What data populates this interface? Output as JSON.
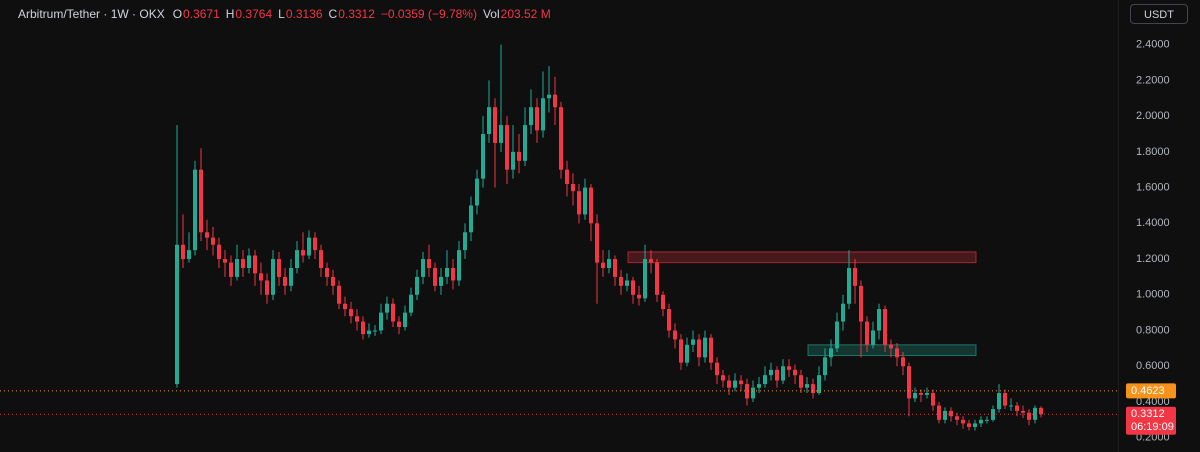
{
  "header": {
    "symbol": "Arbitrum/Tether · 1W · OKX",
    "o_label": "O",
    "o": "0.3671",
    "h_label": "H",
    "h": "0.3764",
    "l_label": "L",
    "l": "0.3136",
    "c_label": "C",
    "c": "0.3312",
    "change": "−0.0359 (−9.78%)",
    "vol_label": "Vol",
    "vol": "203.52 M"
  },
  "currency_button": "USDT",
  "chart_data": {
    "type": "candlestick",
    "up_color": "#22ab94",
    "down_color": "#f23645",
    "grid": false,
    "ylim": [
      0.12,
      2.65
    ],
    "yticks": [
      {
        "value": 0.2,
        "label": "0.2000"
      },
      {
        "value": 0.4,
        "label": "0.4000"
      },
      {
        "value": 0.6,
        "label": "0.6000"
      },
      {
        "value": 0.8,
        "label": "0.8000"
      },
      {
        "value": 1.0,
        "label": "1.0000"
      },
      {
        "value": 1.2,
        "label": "1.2000"
      },
      {
        "value": 1.4,
        "label": "1.4000"
      },
      {
        "value": 1.6,
        "label": "1.6000"
      },
      {
        "value": 1.8,
        "label": "1.8000"
      },
      {
        "value": 2.0,
        "label": "2.0000"
      },
      {
        "value": 2.2,
        "label": "2.2000"
      },
      {
        "value": 2.4,
        "label": "2.4000"
      }
    ],
    "open": [
      0.5,
      1.28,
      1.2,
      1.25,
      1.7,
      1.35,
      1.32,
      1.28,
      1.2,
      1.18,
      1.1,
      1.2,
      1.15,
      1.22,
      1.12,
      1.08,
      1.0,
      1.2,
      1.1,
      1.05,
      1.15,
      1.25,
      1.22,
      1.32,
      1.25,
      1.15,
      1.1,
      1.05,
      0.95,
      0.92,
      0.88,
      0.85,
      0.78,
      0.8,
      0.8,
      0.9,
      0.95,
      0.85,
      0.82,
      0.9,
      1.0,
      1.1,
      1.2,
      1.15,
      1.05,
      1.1,
      1.15,
      1.08,
      1.25,
      1.35,
      1.5,
      1.65,
      1.9,
      2.05,
      1.85,
      1.95,
      1.7,
      1.8,
      1.75,
      1.95,
      2.05,
      1.92,
      2.1,
      2.12,
      2.05,
      1.7,
      1.62,
      1.58,
      1.45,
      1.6,
      1.4,
      1.18,
      1.15,
      1.2,
      1.1,
      1.05,
      1.08,
      1.0,
      0.98,
      1.2,
      1.18,
      1.0,
      0.92,
      0.8,
      0.75,
      0.62,
      0.72,
      0.75,
      0.65,
      0.76,
      0.62,
      0.55,
      0.52,
      0.48,
      0.52,
      0.5,
      0.42,
      0.48,
      0.5,
      0.55,
      0.58,
      0.52,
      0.6,
      0.58,
      0.55,
      0.48,
      0.5,
      0.45,
      0.55,
      0.65,
      0.7,
      0.85,
      0.95,
      1.15,
      1.05,
      0.85,
      0.72,
      0.8,
      0.92,
      0.72,
      0.7,
      0.65,
      0.6,
      0.42,
      0.45,
      0.44,
      0.45,
      0.38,
      0.3,
      0.35,
      0.32,
      0.3,
      0.28,
      0.26,
      0.28,
      0.3,
      0.3,
      0.36,
      0.45,
      0.38,
      0.38,
      0.35,
      0.34,
      0.3,
      0.3671
    ],
    "high": [
      1.95,
      1.45,
      1.35,
      1.75,
      1.82,
      1.42,
      1.38,
      1.32,
      1.25,
      1.22,
      1.28,
      1.25,
      1.26,
      1.25,
      1.18,
      1.12,
      1.25,
      1.24,
      1.15,
      1.2,
      1.3,
      1.35,
      1.36,
      1.35,
      1.28,
      1.18,
      1.14,
      1.08,
      0.99,
      0.96,
      0.92,
      0.88,
      0.84,
      0.83,
      0.95,
      0.99,
      0.98,
      0.88,
      0.94,
      1.04,
      1.14,
      1.24,
      1.28,
      1.18,
      1.15,
      1.25,
      1.2,
      1.3,
      1.4,
      1.55,
      1.7,
      2.0,
      2.2,
      2.1,
      2.4,
      2.0,
      1.95,
      1.9,
      2.05,
      2.15,
      2.1,
      2.25,
      2.28,
      2.22,
      2.08,
      1.75,
      1.68,
      1.62,
      1.65,
      1.62,
      1.45,
      1.25,
      1.25,
      1.22,
      1.14,
      1.12,
      1.1,
      1.05,
      1.28,
      1.25,
      1.2,
      1.02,
      0.95,
      0.84,
      0.78,
      0.76,
      0.8,
      0.78,
      0.8,
      0.78,
      0.65,
      0.58,
      0.55,
      0.56,
      0.55,
      0.53,
      0.52,
      0.54,
      0.6,
      0.62,
      0.6,
      0.64,
      0.64,
      0.61,
      0.58,
      0.54,
      0.53,
      0.6,
      0.7,
      0.75,
      0.9,
      1.0,
      1.25,
      1.2,
      1.08,
      0.88,
      0.85,
      0.95,
      0.94,
      0.75,
      0.73,
      0.68,
      0.62,
      0.48,
      0.47,
      0.48,
      0.47,
      0.4,
      0.37,
      0.37,
      0.34,
      0.32,
      0.3,
      0.3,
      0.32,
      0.32,
      0.38,
      0.5,
      0.47,
      0.42,
      0.4,
      0.38,
      0.36,
      0.38,
      0.3764
    ],
    "low": [
      0.48,
      1.15,
      1.18,
      1.22,
      1.3,
      1.25,
      1.22,
      1.15,
      1.1,
      1.05,
      1.08,
      1.1,
      1.12,
      1.05,
      1.0,
      0.95,
      0.97,
      1.05,
      1.0,
      1.02,
      1.12,
      1.18,
      1.2,
      1.2,
      1.1,
      1.05,
      1.0,
      0.92,
      0.88,
      0.84,
      0.8,
      0.75,
      0.76,
      0.77,
      0.78,
      0.86,
      0.82,
      0.78,
      0.8,
      0.88,
      0.97,
      1.06,
      1.1,
      1.02,
      1.0,
      1.06,
      1.03,
      1.05,
      1.2,
      1.3,
      1.45,
      1.6,
      1.85,
      1.6,
      1.8,
      1.62,
      1.65,
      1.68,
      1.72,
      1.9,
      1.85,
      1.88,
      2.02,
      1.95,
      1.65,
      1.55,
      1.5,
      1.4,
      1.42,
      1.3,
      0.95,
      1.1,
      1.12,
      1.05,
      1.0,
      1.02,
      0.95,
      0.94,
      0.96,
      1.12,
      0.96,
      0.88,
      0.76,
      0.7,
      0.58,
      0.6,
      0.68,
      0.6,
      0.62,
      0.58,
      0.5,
      0.48,
      0.44,
      0.46,
      0.46,
      0.38,
      0.4,
      0.45,
      0.48,
      0.52,
      0.48,
      0.5,
      0.54,
      0.5,
      0.45,
      0.45,
      0.42,
      0.44,
      0.52,
      0.6,
      0.68,
      0.8,
      0.92,
      0.95,
      0.65,
      0.68,
      0.7,
      0.75,
      0.68,
      0.65,
      0.6,
      0.55,
      0.32,
      0.4,
      0.4,
      0.42,
      0.35,
      0.28,
      0.28,
      0.29,
      0.27,
      0.25,
      0.24,
      0.24,
      0.26,
      0.28,
      0.29,
      0.34,
      0.36,
      0.35,
      0.32,
      0.31,
      0.27,
      0.28,
      0.3136
    ],
    "close": [
      1.28,
      1.2,
      1.25,
      1.7,
      1.35,
      1.32,
      1.28,
      1.2,
      1.18,
      1.1,
      1.2,
      1.15,
      1.22,
      1.12,
      1.08,
      1.0,
      1.2,
      1.1,
      1.05,
      1.15,
      1.25,
      1.22,
      1.32,
      1.25,
      1.15,
      1.1,
      1.05,
      0.95,
      0.92,
      0.88,
      0.85,
      0.78,
      0.8,
      0.8,
      0.9,
      0.95,
      0.85,
      0.82,
      0.9,
      1.0,
      1.1,
      1.2,
      1.15,
      1.05,
      1.1,
      1.15,
      1.08,
      1.25,
      1.35,
      1.5,
      1.65,
      1.9,
      2.05,
      1.85,
      1.95,
      1.7,
      1.8,
      1.75,
      1.95,
      2.05,
      1.92,
      2.1,
      2.12,
      2.05,
      1.7,
      1.62,
      1.58,
      1.45,
      1.6,
      1.4,
      1.18,
      1.15,
      1.2,
      1.1,
      1.05,
      1.08,
      1.0,
      0.98,
      1.2,
      1.18,
      1.0,
      0.92,
      0.8,
      0.75,
      0.62,
      0.72,
      0.75,
      0.65,
      0.76,
      0.62,
      0.55,
      0.52,
      0.48,
      0.52,
      0.5,
      0.42,
      0.48,
      0.5,
      0.55,
      0.58,
      0.52,
      0.6,
      0.58,
      0.55,
      0.48,
      0.5,
      0.45,
      0.55,
      0.65,
      0.7,
      0.85,
      0.95,
      1.15,
      1.05,
      0.85,
      0.72,
      0.8,
      0.92,
      0.72,
      0.7,
      0.65,
      0.6,
      0.42,
      0.45,
      0.44,
      0.45,
      0.38,
      0.3,
      0.35,
      0.32,
      0.3,
      0.28,
      0.26,
      0.28,
      0.3,
      0.3,
      0.36,
      0.45,
      0.38,
      0.38,
      0.35,
      0.34,
      0.3,
      0.3671,
      0.3312
    ],
    "zones": [
      {
        "low": 1.18,
        "high": 1.24,
        "color": "#f23645"
      },
      {
        "low": 0.66,
        "high": 0.72,
        "color": "#22ab94"
      }
    ],
    "price_lines": [
      {
        "value": 0.4623,
        "label": "0.4623",
        "color": "#f7931a"
      },
      {
        "value": 0.3312,
        "label": "0.3312",
        "countdown": "06:19:09",
        "color": "#f23645"
      }
    ]
  }
}
